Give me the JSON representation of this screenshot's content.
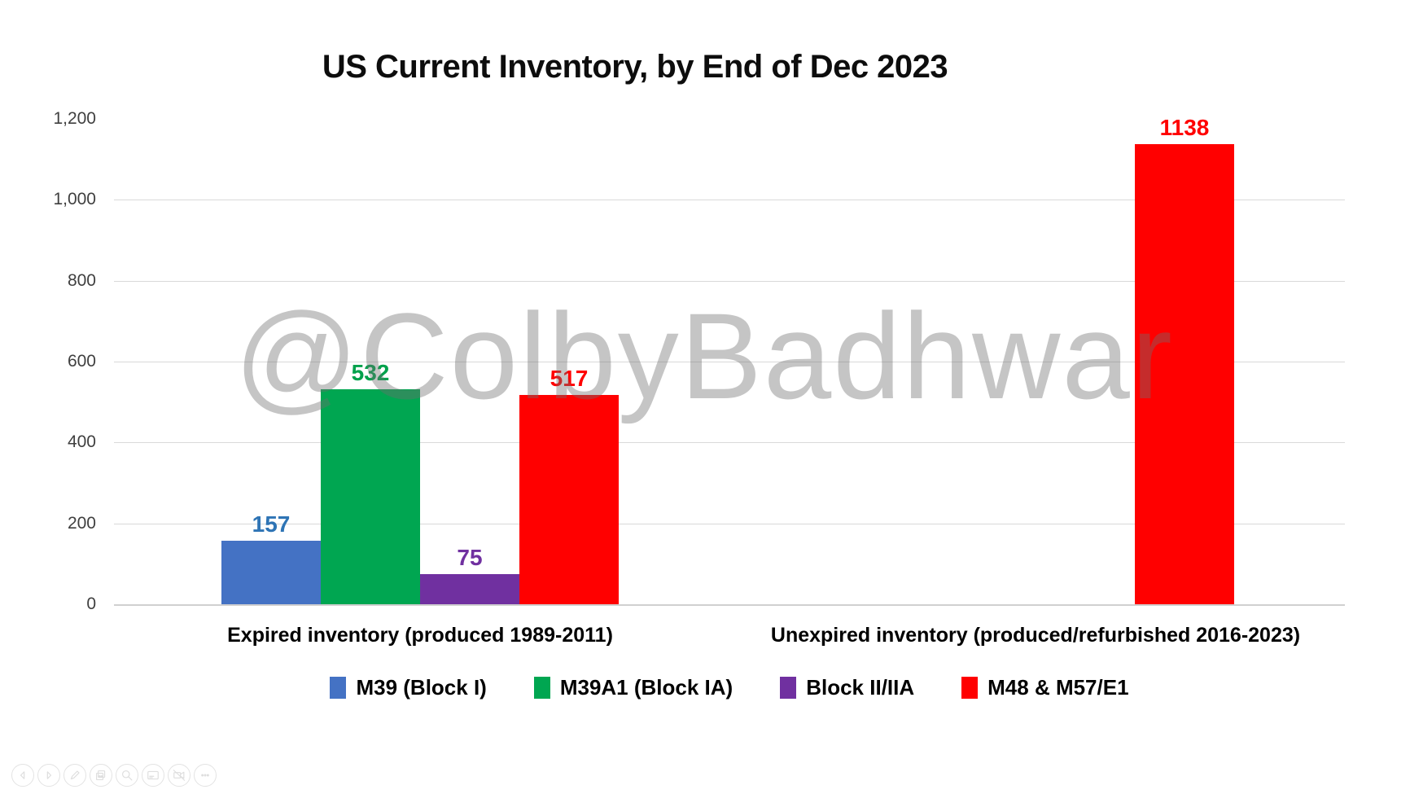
{
  "title": "US Current Inventory, by End of Dec 2023",
  "watermark": "@ColbyBadhwar",
  "colors": {
    "background": "#ffffff",
    "gridline": "#d9d9d9",
    "axis_text": "#3f3f3f",
    "title_text": "#0d0d0d",
    "watermark_gray": "#c7c7c7"
  },
  "chart_data": {
    "type": "bar",
    "title": "US Current Inventory, by End of Dec 2023",
    "xlabel": "",
    "ylabel": "",
    "ylim": [
      0,
      1200
    ],
    "grid": true,
    "legend_position": "bottom",
    "y_ticks": [
      {
        "value": 0,
        "label": "0"
      },
      {
        "value": 200,
        "label": "200"
      },
      {
        "value": 400,
        "label": "400"
      },
      {
        "value": 600,
        "label": "600"
      },
      {
        "value": 800,
        "label": "800"
      },
      {
        "value": 1000,
        "label": "1,000"
      },
      {
        "value": 1200,
        "label": "1,200"
      }
    ],
    "gridline_values": [
      200,
      400,
      600,
      800,
      1000
    ],
    "categories": [
      "Expired inventory (produced 1989-2011)",
      "Unexpired inventory (produced/refurbished 2016-2023)"
    ],
    "series": [
      {
        "name": "M39 (Block I)",
        "color": "#4472C4",
        "value_color": "#2E74B5",
        "values": [
          157,
          null
        ]
      },
      {
        "name": "M39A1 (Block IA)",
        "color": "#00A651",
        "value_color": "#00A14B",
        "values": [
          532,
          null
        ]
      },
      {
        "name": "Block II/IIA",
        "color": "#7030A0",
        "value_color": "#7030A0",
        "values": [
          75,
          null
        ]
      },
      {
        "name": "M48 & M57/E1",
        "color": "#FF0000",
        "value_color": "#FF0000",
        "values": [
          517,
          1138
        ]
      }
    ]
  },
  "toolbar": {
    "buttons": [
      {
        "name": "previous"
      },
      {
        "name": "next"
      },
      {
        "name": "edit-pencil"
      },
      {
        "name": "copy"
      },
      {
        "name": "zoom-search"
      },
      {
        "name": "card-view"
      },
      {
        "name": "video-off"
      },
      {
        "name": "more-options"
      }
    ]
  }
}
